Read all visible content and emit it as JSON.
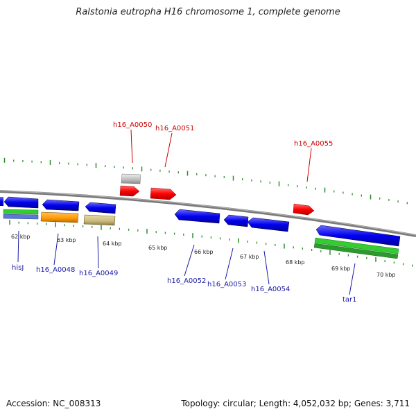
{
  "title": "Ralstonia eutropha H16 chromosome 1, complete genome",
  "footer": {
    "accession": "Accession: NC_008313",
    "summary": "Topology: circular; Length: 4,052,032 bp; Genes: 3,711"
  },
  "colors": {
    "forward_gene": "#ff0000",
    "reverse_gene": "#0000ee",
    "grey_gene": "#bbbbbb",
    "rna_green": "#33cc33",
    "orange": "#ff9900",
    "khaki": "#c8b878",
    "tick": "#2f8a2f",
    "backbone": "#888888",
    "label_forward": "#cc0000",
    "label_reverse": "#1a1aa6"
  },
  "kbp_labels": [
    "62 kbp",
    "63 kbp",
    "64 kbp",
    "65 kbp",
    "66 kbp",
    "67 kbp",
    "68 kbp",
    "69 kbp",
    "70 kbp"
  ],
  "top_gene_labels": [
    "h16_A0050",
    "h16_A0051",
    "h16_A0055"
  ],
  "bottom_gene_labels": [
    "hisJ",
    "h16_A0048",
    "h16_A0049",
    "h16_A0052",
    "h16_A0053",
    "h16_A0054",
    "tar1"
  ]
}
